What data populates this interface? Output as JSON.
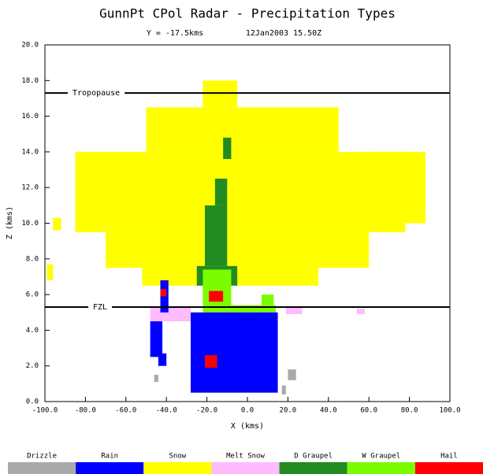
{
  "chart_data": {
    "type": "section",
    "title": "GunnPt CPol Radar - Precipitation Types",
    "subtitle": [
      "Y = -17.5kms",
      "12Jan2003 15.50Z"
    ],
    "x_label": "X (kms)",
    "y_label": "Z (kms)",
    "xlim": [
      -100,
      100
    ],
    "ylim": [
      0,
      20
    ],
    "xticks": [
      {
        "value": -100,
        "label": "-100.0"
      },
      {
        "value": -80,
        "label": "-80.0"
      },
      {
        "value": -60,
        "label": "-60.0"
      },
      {
        "value": -40,
        "label": "-40.0"
      },
      {
        "value": -20,
        "label": "-20.0"
      },
      {
        "value": 0,
        "label": "0.0"
      },
      {
        "value": 20,
        "label": "20.0"
      },
      {
        "value": 40,
        "label": "40.0"
      },
      {
        "value": 60,
        "label": "60.0"
      },
      {
        "value": 80,
        "label": "80.0"
      },
      {
        "value": 100,
        "label": "100.0"
      }
    ],
    "yticks": [
      {
        "value": 0,
        "label": "0.0"
      },
      {
        "value": 2,
        "label": "2.0"
      },
      {
        "value": 4,
        "label": "4.0"
      },
      {
        "value": 6,
        "label": "6.0"
      },
      {
        "value": 8,
        "label": "8.0"
      },
      {
        "value": 10,
        "label": "10.0"
      },
      {
        "value": 12,
        "label": "12.0"
      },
      {
        "value": 14,
        "label": "14.0"
      },
      {
        "value": 16,
        "label": "16.0"
      },
      {
        "value": 18,
        "label": "18.0"
      },
      {
        "value": 20,
        "label": "20.0"
      }
    ],
    "levels": [
      {
        "name": "Tropopause",
        "z": 17.3
      },
      {
        "name": "FZL",
        "z": 5.3
      }
    ],
    "classes": [
      {
        "name": "Drizzle",
        "color": "#aaaaaa"
      },
      {
        "name": "Rain",
        "color": "#0000ff"
      },
      {
        "name": "Snow",
        "color": "#ffff00"
      },
      {
        "name": "Melt Snow",
        "color": "#ffbbff"
      },
      {
        "name": "D Graupel",
        "color": "#228b22"
      },
      {
        "name": "W Graupel",
        "color": "#7cfc00"
      },
      {
        "name": "Hail",
        "color": "#ff0000"
      }
    ],
    "cells": [
      {
        "class": 2,
        "x": [
          -85,
          78
        ],
        "z": [
          9.5,
          14
        ]
      },
      {
        "class": 2,
        "x": [
          -50,
          45
        ],
        "z": [
          14,
          16.5
        ]
      },
      {
        "class": 2,
        "x": [
          -22,
          -5
        ],
        "z": [
          16.5,
          18
        ]
      },
      {
        "class": 2,
        "x": [
          -70,
          60
        ],
        "z": [
          7.5,
          9.5
        ]
      },
      {
        "class": 2,
        "x": [
          -52,
          35
        ],
        "z": [
          6.5,
          7.5
        ]
      },
      {
        "class": 2,
        "x": [
          62,
          88
        ],
        "z": [
          10,
          14
        ]
      },
      {
        "class": 2,
        "x": [
          -96,
          -92
        ],
        "z": [
          9.6,
          10.3
        ]
      },
      {
        "class": 2,
        "x": [
          -99,
          -96
        ],
        "z": [
          6.8,
          7.7
        ]
      },
      {
        "class": 4,
        "x": [
          -12,
          -8
        ],
        "z": [
          13.6,
          14.8
        ]
      },
      {
        "class": 4,
        "x": [
          -16,
          -10
        ],
        "z": [
          11,
          12.5
        ]
      },
      {
        "class": 4,
        "x": [
          -21,
          -10
        ],
        "z": [
          7.6,
          11
        ]
      },
      {
        "class": 4,
        "x": [
          -25,
          -5
        ],
        "z": [
          6.5,
          7.6
        ]
      },
      {
        "class": 5,
        "x": [
          -22,
          -8
        ],
        "z": [
          5,
          7.4
        ]
      },
      {
        "class": 5,
        "x": [
          -8,
          14
        ],
        "z": [
          5,
          5.4
        ]
      },
      {
        "class": 5,
        "x": [
          7,
          13
        ],
        "z": [
          5.4,
          6
        ]
      },
      {
        "class": 3,
        "x": [
          -48,
          -28
        ],
        "z": [
          4.5,
          5.3
        ]
      },
      {
        "class": 3,
        "x": [
          19,
          27
        ],
        "z": [
          4.9,
          5.3
        ]
      },
      {
        "class": 3,
        "x": [
          54,
          58
        ],
        "z": [
          4.9,
          5.2
        ]
      },
      {
        "class": 1,
        "x": [
          -28,
          15
        ],
        "z": [
          0.5,
          5
        ]
      },
      {
        "class": 1,
        "x": [
          -43,
          -39
        ],
        "z": [
          5,
          6.8
        ]
      },
      {
        "class": 1,
        "x": [
          -48,
          -42
        ],
        "z": [
          2.5,
          4.5
        ]
      },
      {
        "class": 1,
        "x": [
          -44,
          -40
        ],
        "z": [
          2,
          2.7
        ]
      },
      {
        "class": 6,
        "x": [
          -43,
          -40
        ],
        "z": [
          5.9,
          6.3
        ]
      },
      {
        "class": 6,
        "x": [
          -21,
          -15
        ],
        "z": [
          1.9,
          2.6
        ]
      },
      {
        "class": 6,
        "x": [
          -19,
          -12
        ],
        "z": [
          5.6,
          6.2
        ]
      },
      {
        "class": 0,
        "x": [
          20,
          24
        ],
        "z": [
          1.2,
          1.8
        ]
      },
      {
        "class": 0,
        "x": [
          -46,
          -44
        ],
        "z": [
          1.1,
          1.5
        ]
      },
      {
        "class": 0,
        "x": [
          17,
          19
        ],
        "z": [
          0.4,
          0.9
        ]
      }
    ]
  }
}
